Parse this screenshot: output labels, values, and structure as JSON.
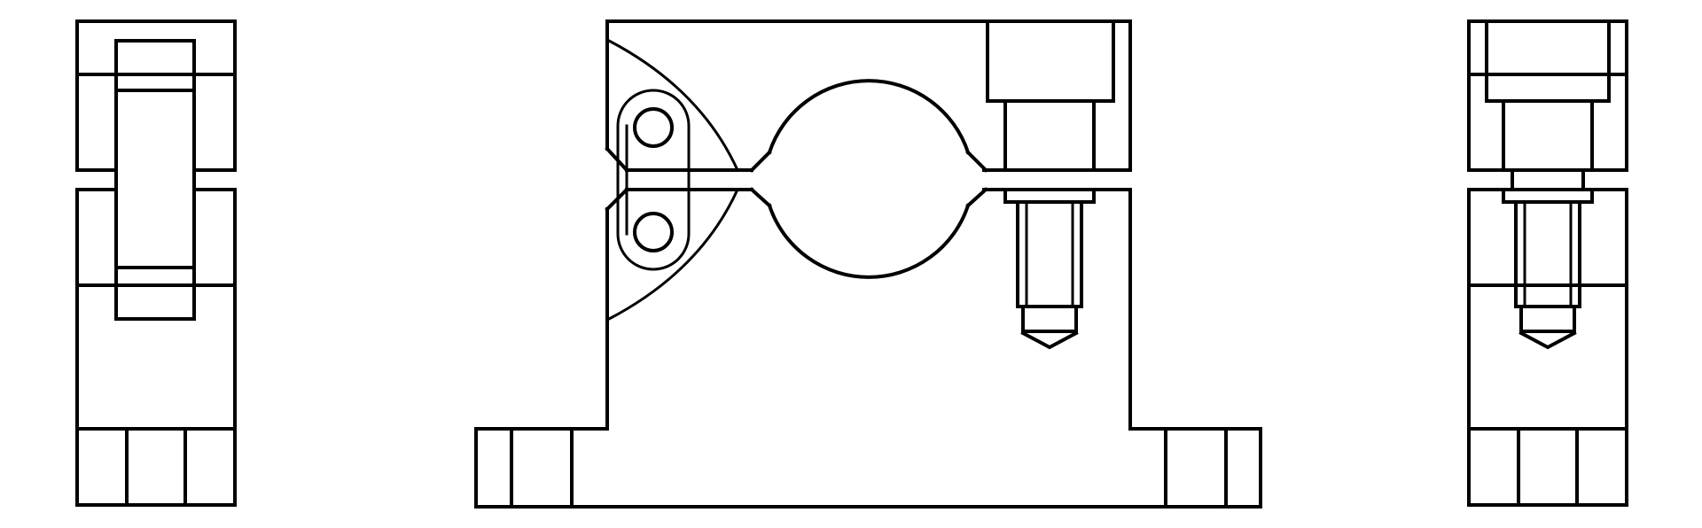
{
  "drawing": {
    "type": "orthographic-views",
    "views": [
      "left-side-view",
      "front-view",
      "right-side-view"
    ],
    "line_color": "#000000",
    "background": "#ffffff"
  }
}
